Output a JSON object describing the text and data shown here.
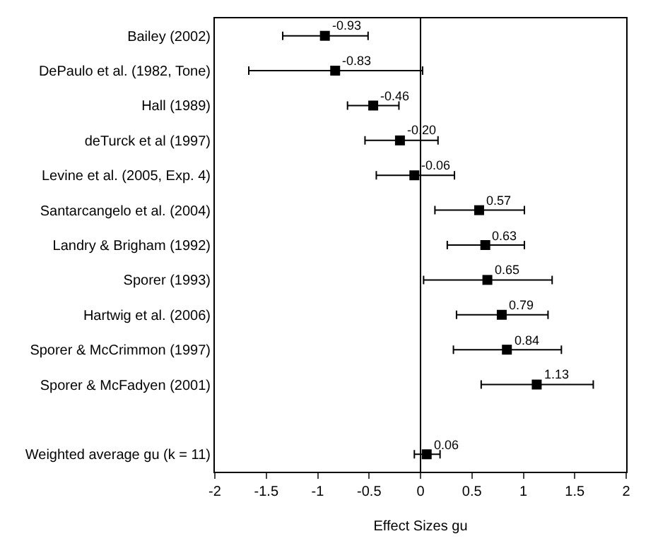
{
  "chart_data": {
    "type": "scatter",
    "orientation": "horizontal",
    "xlabel": "Effect Sizes gu",
    "categories": [
      "Bailey (2002)",
      "DePaulo et al. (1982, Tone)",
      "Hall (1989)",
      "deTurck et al (1997)",
      "Levine et al. (2005, Exp. 4)",
      "Santarcangelo et al. (2004)",
      "Landry & Brigham (1992)",
      "Sporer (1993)",
      "Hartwig et al. (2006)",
      "Sporer & McCrimmon (1997)",
      "Sporer & McFadyen (2001)",
      null,
      "Weighted average gu (k = 11)"
    ],
    "values": [
      -0.93,
      -0.83,
      -0.46,
      -0.2,
      -0.06,
      0.57,
      0.63,
      0.65,
      0.79,
      0.84,
      1.13,
      null,
      0.06
    ],
    "errors": [
      [
        -1.34,
        -0.51
      ],
      [
        -1.67,
        0.02
      ],
      [
        -0.71,
        -0.21
      ],
      [
        -0.54,
        0.17
      ],
      [
        -0.43,
        0.33
      ],
      [
        0.14,
        1.01
      ],
      [
        0.26,
        1.01
      ],
      [
        0.03,
        1.28
      ],
      [
        0.35,
        1.24
      ],
      [
        0.32,
        1.37
      ],
      [
        0.59,
        1.68
      ],
      null,
      [
        -0.06,
        0.19
      ]
    ],
    "value_labels": [
      "-0.93",
      "-0.83",
      "-0.46",
      "-0.20",
      "-0.06",
      "0.57",
      "0.63",
      "0.65",
      "0.79",
      "0.84",
      "1.13",
      null,
      "0.06"
    ],
    "color": "#000000",
    "marker": "square",
    "xlim": [
      -2,
      2
    ],
    "xticks": [
      -2,
      -1.5,
      -1,
      -0.5,
      0,
      0.5,
      1,
      1.5,
      2
    ],
    "ref_lines": [
      {
        "axis": "x",
        "value": 0,
        "color": "#000000"
      }
    ]
  }
}
